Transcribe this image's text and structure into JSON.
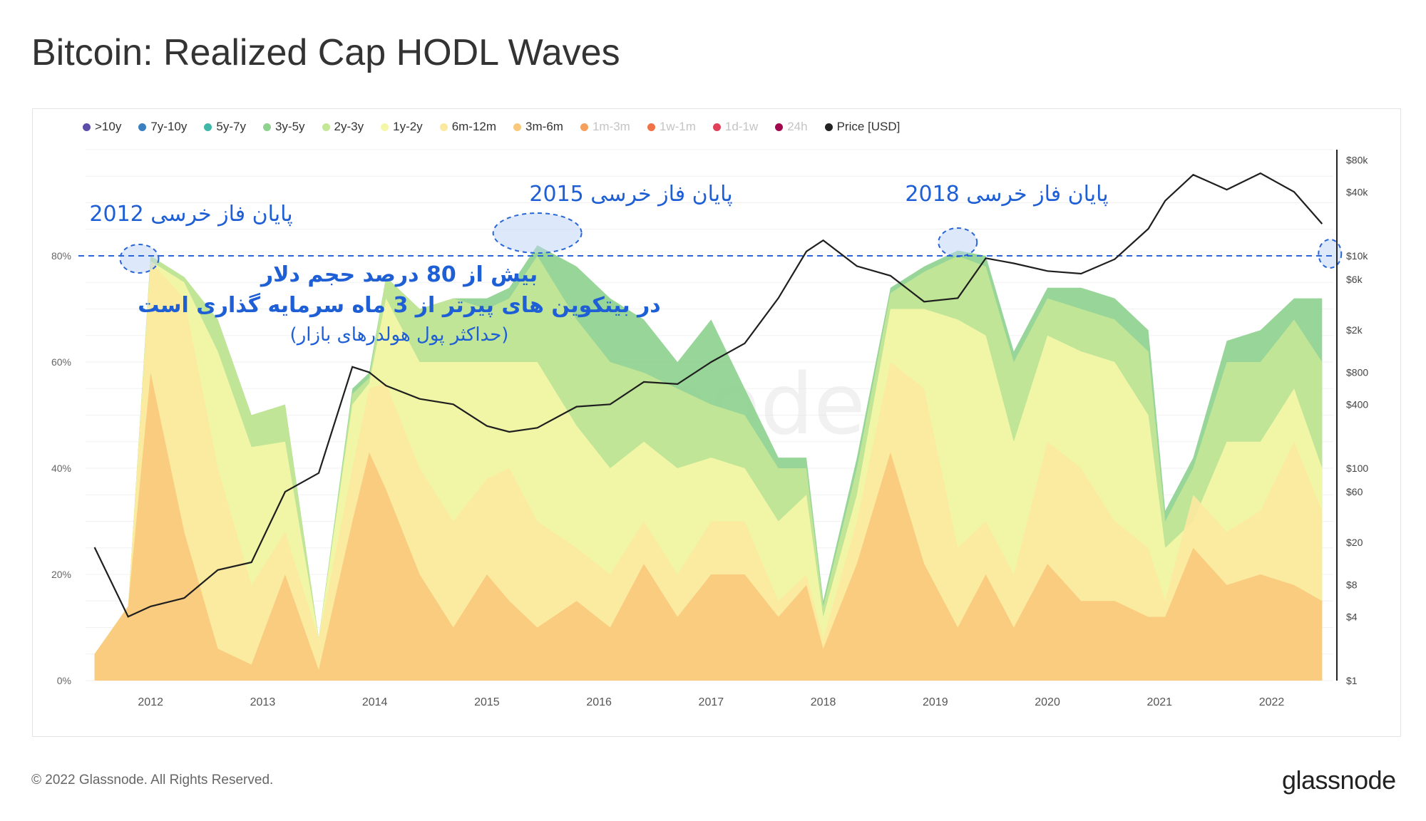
{
  "page": {
    "title": "Bitcoin: Realized Cap HODL Waves",
    "copyright": "© 2022 Glassnode. All Rights Reserved.",
    "brand": "glassnode",
    "watermark": "glassnode"
  },
  "legend": [
    {
      "label": ">10y",
      "color": "#5b4da8",
      "active": true
    },
    {
      "label": "7y-10y",
      "color": "#3a7fbf",
      "active": true
    },
    {
      "label": "5y-7y",
      "color": "#3fb8a8",
      "active": true
    },
    {
      "label": "3y-5y",
      "color": "#8fd18f",
      "active": true
    },
    {
      "label": "2y-3y",
      "color": "#c3e697",
      "active": true
    },
    {
      "label": "1y-2y",
      "color": "#f5f7a8",
      "active": true
    },
    {
      "label": "6m-12m",
      "color": "#fbe9a0",
      "active": true
    },
    {
      "label": "3m-6m",
      "color": "#f8c97c",
      "active": true
    },
    {
      "label": "1m-3m",
      "color": "#f5a05c",
      "active": false
    },
    {
      "label": "1w-1m",
      "color": "#ef7347",
      "active": false
    },
    {
      "label": "1d-1w",
      "color": "#e0405a",
      "active": false
    },
    {
      "label": "24h",
      "color": "#a3084f",
      "active": false
    },
    {
      "label": "Price [USD]",
      "color": "#222222",
      "active": true
    }
  ],
  "annotations": {
    "bear_2012": "پایان فاز خرسی 2012",
    "bear_2015": "پایان فاز خرسی 2015",
    "bear_2018": "پایان فاز خرسی 2018",
    "main_line1": "بیش از 80 درصد حجم دلار",
    "main_line2": "در بیتکوین های پیرتر از 3 ماه سرمایه گذاری است",
    "main_line3": "(حداکثر پول هولدرهای بازار)"
  },
  "chart_data": {
    "type": "area",
    "title": "Bitcoin: Realized Cap HODL Waves",
    "x": [
      2011.5,
      2011.8,
      2012.0,
      2012.3,
      2012.6,
      2012.9,
      2013.2,
      2013.5,
      2013.8,
      2013.95,
      2014.1,
      2014.4,
      2014.7,
      2015.0,
      2015.2,
      2015.45,
      2015.8,
      2016.1,
      2016.4,
      2016.7,
      2017.0,
      2017.3,
      2017.6,
      2017.85,
      2018.0,
      2018.3,
      2018.6,
      2018.9,
      2019.2,
      2019.45,
      2019.7,
      2020.0,
      2020.3,
      2020.6,
      2020.9,
      2021.05,
      2021.3,
      2021.6,
      2021.9,
      2022.2,
      2022.45
    ],
    "y_percent_axis": {
      "range": [
        0,
        100
      ],
      "ticks": [
        "0%",
        "20%",
        "40%",
        "60%",
        "80%"
      ]
    },
    "y_price_axis": {
      "scale": "log",
      "range": [
        1,
        100000
      ],
      "ticks": [
        "$1",
        "$4",
        "$8",
        "$20",
        "$60",
        "$100",
        "$400",
        "$800",
        "$2k",
        "$6k",
        "$10k",
        "$40k",
        "$80k"
      ]
    },
    "x_ticks": [
      "2012",
      "2013",
      "2014",
      "2015",
      "2016",
      "2017",
      "2018",
      "2019",
      "2020",
      "2021",
      "2022"
    ],
    "reference_line": {
      "value": 80,
      "label": "80%"
    },
    "series": [
      {
        "name": "3m-6m",
        "values": [
          5,
          14,
          58,
          28,
          6,
          3,
          20,
          2,
          30,
          43,
          36,
          20,
          10,
          20,
          15,
          10,
          15,
          10,
          22,
          12,
          20,
          20,
          12,
          18,
          6,
          22,
          43,
          22,
          10,
          20,
          10,
          22,
          15,
          15,
          12,
          12,
          25,
          18,
          20,
          18,
          15
        ]
      },
      {
        "name": "6m-12m",
        "values": [
          5,
          14,
          79,
          72,
          40,
          18,
          28,
          8,
          40,
          55,
          56,
          40,
          30,
          38,
          40,
          30,
          25,
          20,
          30,
          20,
          30,
          30,
          15,
          20,
          8,
          30,
          60,
          55,
          25,
          30,
          20,
          45,
          40,
          30,
          25,
          15,
          35,
          28,
          32,
          45,
          32
        ]
      },
      {
        "name": "1y-2y",
        "values": [
          5,
          14,
          79,
          75,
          62,
          44,
          45,
          8,
          52,
          56,
          72,
          60,
          60,
          60,
          60,
          60,
          48,
          40,
          45,
          40,
          42,
          40,
          30,
          35,
          12,
          35,
          70,
          70,
          68,
          65,
          45,
          65,
          62,
          60,
          50,
          25,
          30,
          45,
          45,
          55,
          40
        ]
      },
      {
        "name": "2y-3y",
        "values": [
          5,
          14,
          80,
          76,
          68,
          50,
          52,
          8,
          54,
          57,
          76,
          70,
          72,
          70,
          72,
          80,
          68,
          60,
          58,
          55,
          52,
          50,
          40,
          40,
          14,
          40,
          73,
          77,
          80,
          78,
          60,
          72,
          70,
          68,
          62,
          30,
          40,
          60,
          60,
          68,
          60
        ]
      },
      {
        "name": "3y-5y",
        "values": [
          5,
          14,
          80,
          76,
          68,
          50,
          52,
          8,
          55,
          58,
          76,
          70,
          72,
          72,
          74,
          82,
          78,
          72,
          68,
          60,
          68,
          55,
          42,
          42,
          15,
          42,
          74,
          78,
          81,
          80,
          62,
          74,
          74,
          72,
          66,
          32,
          42,
          64,
          66,
          72,
          72
        ]
      },
      {
        "name": "Price [USD]",
        "values": [
          18,
          4,
          5,
          6,
          11,
          13,
          60,
          90,
          900,
          800,
          600,
          450,
          400,
          250,
          220,
          240,
          380,
          400,
          650,
          620,
          1000,
          1500,
          4000,
          11000,
          14000,
          8000,
          6500,
          3700,
          4000,
          9500,
          8500,
          7200,
          6800,
          9300,
          18000,
          33000,
          58000,
          42000,
          60000,
          40000,
          20000
        ]
      }
    ]
  }
}
